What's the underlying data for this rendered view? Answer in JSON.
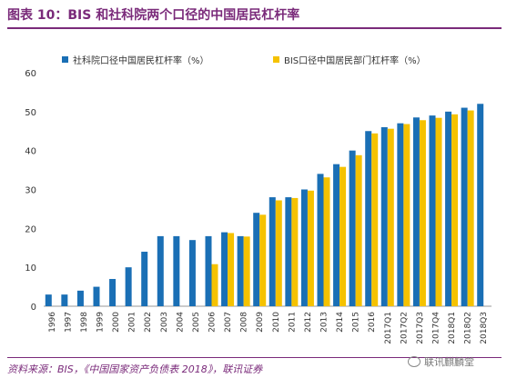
{
  "title": "图表 10：BIS 和社科院两个口径的中国居民杠杆率",
  "source": "资料来源：BIS，《中国国家资产负债表 2018》，联讯证券",
  "watermark": "联讯麒麟堂",
  "colors": {
    "series1": "#1a6fb5",
    "series2": "#f5c200",
    "accent": "#7a2a7a"
  },
  "chart_data": {
    "type": "bar",
    "categories": [
      "1996",
      "1997",
      "1998",
      "1999",
      "2000",
      "2001",
      "2002",
      "2003",
      "2004",
      "2005",
      "2006",
      "2007",
      "2008",
      "2009",
      "2010",
      "2011",
      "2012",
      "2013",
      "2014",
      "2015",
      "2016",
      "2017Q1",
      "2017Q2",
      "2017Q3",
      "2017Q4",
      "2018Q1",
      "2018Q2",
      "2018Q3"
    ],
    "series": [
      {
        "name": "社科院口径中国居民杠杆率（%）",
        "values": [
          3,
          3,
          4,
          5,
          7,
          10,
          14,
          18,
          18,
          17,
          18,
          19,
          18,
          24,
          28,
          28,
          30,
          34,
          36.5,
          40,
          45,
          46,
          47,
          48.5,
          49,
          50,
          51,
          52
        ]
      },
      {
        "name": "BIS口径中国居民部门杠杆率（%）",
        "values": [
          null,
          null,
          null,
          null,
          null,
          null,
          null,
          null,
          null,
          null,
          10.8,
          18.8,
          17.9,
          23.5,
          27.2,
          27.8,
          29.7,
          33.1,
          35.8,
          38.8,
          44.4,
          45.6,
          46.8,
          47.8,
          48.4,
          49.3,
          50.3,
          null
        ]
      }
    ],
    "ylim": [
      0,
      60
    ],
    "yticks": [
      0,
      10,
      20,
      30,
      40,
      50,
      60
    ],
    "legend_position": "top"
  }
}
